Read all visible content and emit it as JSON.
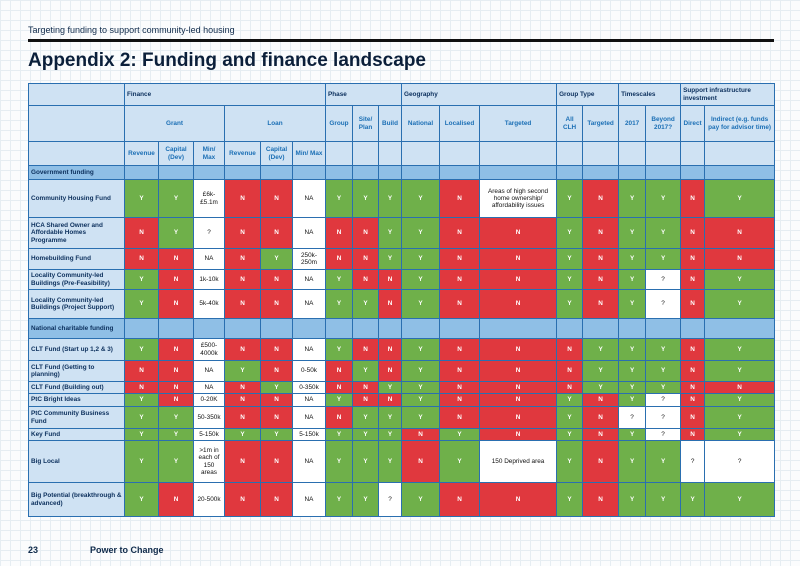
{
  "header": "Targeting funding to support community-led housing",
  "title": "Appendix 2: Funding and finance landscape",
  "footer": {
    "page": "23",
    "brand": "Power to Change"
  },
  "legend_colors": {
    "Y": "#6fb04a",
    "N": "#e0383e",
    "section": "#8fbfe6",
    "header": "#cfe2f3"
  },
  "groups": [
    "Finance",
    "Phase",
    "Geography",
    "Group Type",
    "Timescales",
    "Support infrastructure investment"
  ],
  "subgroups": [
    "Grant",
    "Loan"
  ],
  "columns": [
    "Revenue",
    "Capital (Dev)",
    "Min/ Max",
    "Revenue",
    "Capital (Dev)",
    "Min/ Max",
    "Group",
    "Site/ Plan",
    "Build",
    "National",
    "Localised",
    "Targeted",
    "All CLH",
    "Targeted",
    "2017",
    "Beyond 2017?",
    "Direct",
    "Indirect (e.g. funds pay for advisor time)"
  ],
  "rows": [
    {
      "section": "Government funding"
    },
    {
      "label": "Community Housing Fund",
      "cells": [
        "Y",
        "Y",
        "£6k-£5.1m",
        "N",
        "N",
        "NA",
        "Y",
        "Y",
        "Y",
        "Y",
        "N",
        "Areas of high second home ownership/ affordability issues",
        "Y",
        "N",
        "Y",
        "Y",
        "N",
        "Y"
      ]
    },
    {
      "label": "HCA Shared Owner and Affordable Homes Programme",
      "cells": [
        "N",
        "Y",
        "?",
        "N",
        "N",
        "NA",
        "N",
        "N",
        "Y",
        "Y",
        "N",
        "N",
        "Y",
        "N",
        "Y",
        "Y",
        "N",
        "N"
      ]
    },
    {
      "label": "Homebuilding Fund",
      "cells": [
        "N",
        "N",
        "NA",
        "N",
        "Y",
        "250k-250m",
        "N",
        "N",
        "Y",
        "Y",
        "N",
        "N",
        "Y",
        "N",
        "Y",
        "Y",
        "N",
        "N"
      ]
    },
    {
      "label": "Locality Community-led Buildings (Pre-Feasibility)",
      "cells": [
        "Y",
        "N",
        "1k-10k",
        "N",
        "N",
        "NA",
        "Y",
        "N",
        "N",
        "Y",
        "N",
        "N",
        "Y",
        "N",
        "Y",
        "?",
        "N",
        "Y"
      ]
    },
    {
      "label": "Locality Community-led Buildings (Project Support)",
      "cells": [
        "Y",
        "N",
        "5k-40k",
        "N",
        "N",
        "NA",
        "Y",
        "Y",
        "N",
        "Y",
        "N",
        "N",
        "Y",
        "N",
        "Y",
        "?",
        "N",
        "Y"
      ]
    },
    {
      "section": "National charitable funding"
    },
    {
      "label": "CLT Fund (Start up 1,2 & 3)",
      "cells": [
        "Y",
        "N",
        "£500-4000k",
        "N",
        "N",
        "NA",
        "Y",
        "N",
        "N",
        "Y",
        "N",
        "N",
        "N",
        "Y",
        "Y",
        "Y",
        "N",
        "Y"
      ]
    },
    {
      "label": "CLT Fund (Getting to planning)",
      "cells": [
        "N",
        "N",
        "NA",
        "Y",
        "N",
        "0-50k",
        "N",
        "Y",
        "N",
        "Y",
        "N",
        "N",
        "N",
        "Y",
        "Y",
        "Y",
        "N",
        "Y"
      ]
    },
    {
      "label": "CLT Fund (Building out)",
      "cells": [
        "N",
        "N",
        "NA",
        "N",
        "Y",
        "0-350k",
        "N",
        "N",
        "Y",
        "Y",
        "N",
        "N",
        "N",
        "Y",
        "Y",
        "Y",
        "N",
        "N"
      ]
    },
    {
      "label": "PtC Bright Ideas",
      "cells": [
        "Y",
        "N",
        "0-20K",
        "N",
        "N",
        "NA",
        "Y",
        "N",
        "N",
        "Y",
        "N",
        "N",
        "Y",
        "N",
        "Y",
        "?",
        "N",
        "Y"
      ]
    },
    {
      "label": "PtC Community Business Fund",
      "cells": [
        "Y",
        "Y",
        "50-350k",
        "N",
        "N",
        "NA",
        "N",
        "Y",
        "Y",
        "Y",
        "N",
        "N",
        "Y",
        "N",
        "?",
        "?",
        "N",
        "Y"
      ]
    },
    {
      "label": "Key Fund",
      "cells": [
        "Y",
        "Y",
        "5-150k",
        "Y",
        "Y",
        "5-150k",
        "Y",
        "Y",
        "Y",
        "N",
        "Y",
        "N",
        "Y",
        "N",
        "Y",
        "?",
        "N",
        "Y"
      ]
    },
    {
      "label": "Big Local",
      "cells": [
        "Y",
        "Y",
        ">1m in each of 150 areas",
        "N",
        "N",
        "NA",
        "Y",
        "Y",
        "Y",
        "N",
        "Y",
        "150 Deprived area",
        "Y",
        "N",
        "Y",
        "Y",
        "?",
        "?"
      ]
    },
    {
      "label": "Big Potential (breakthrough & advanced)",
      "cells": [
        "Y",
        "N",
        "20-500k",
        "N",
        "N",
        "NA",
        "Y",
        "Y",
        "?",
        "Y",
        "N",
        "N",
        "Y",
        "N",
        "Y",
        "Y",
        "Y",
        "Y"
      ]
    }
  ]
}
